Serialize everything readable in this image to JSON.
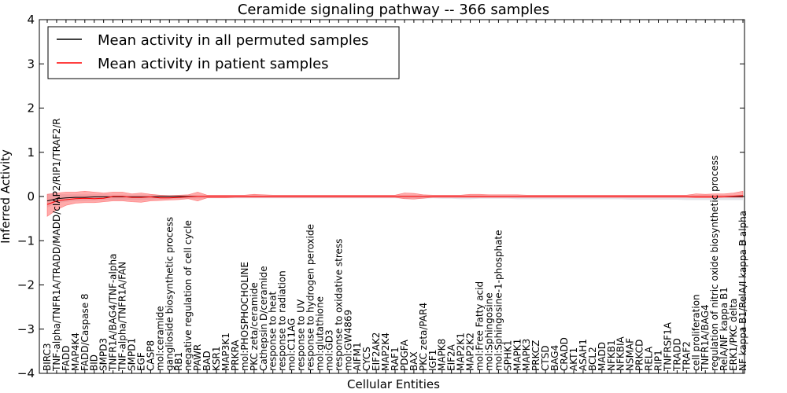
{
  "chart_data": {
    "type": "line",
    "title": "Ceramide signaling pathway -- 366 samples",
    "xlabel": "Cellular Entities",
    "ylabel": "Inferred Activity",
    "ylim": [
      -4,
      4
    ],
    "yticks": [
      -4,
      -3,
      -2,
      -1,
      0,
      1,
      2,
      3,
      4
    ],
    "grid": false,
    "legend_position": "top-left",
    "colors": {
      "permuted": "#000000",
      "patient": "#ff0000",
      "patient_band": "#ff6666",
      "permuted_band": "#b0b0c0"
    },
    "categories": [
      "BIRC3",
      "TNF-alpha/TNFR1A/TRADD/MADD/cIAP2/RIP1/TRAF2/R",
      "FADD",
      "MAP4K4",
      "FADD/Caspase 8",
      "BID",
      "SMPD3",
      "TNFR1A/BAG4/TNF-alpha",
      "TNF-alpha/TNFR1A/FAN",
      "SMPD1",
      "EGF",
      "CASP8",
      "mol:ceramide",
      "ganglioside biosynthetic process",
      "RB1",
      "negative regulation of cell cycle",
      "PAWR",
      "BAD",
      "KSR1",
      "MAP3K1",
      "PRKRA",
      "mol:PHOSPHOCHOLINE",
      "PKC zeta/ceramide",
      "Cathepsin D/ceramide",
      "response to heat",
      "response to radiation",
      "mol:C11AG",
      "response to UV",
      "response to hydrogen peroxide",
      "mol:glutathione",
      "mol:GD3",
      "response to oxidative stress",
      "mol:GW4869",
      "AIFM1",
      "CYCS",
      "EIF2AK2",
      "MAP2K4",
      "RAF1",
      "PDGFA",
      "BAX",
      "PKC zeta/PAR4",
      "IGF1",
      "MAPK8",
      "EIF2A",
      "MAP2K1",
      "MAP2K2",
      "mol:Free Fatty acid",
      "mol:Sphingosine",
      "mol:Sphingosine-1-phosphate",
      "SPHK1",
      "MAPK1",
      "MAPK3",
      "PRKCZ",
      "CTSD",
      "BAG4",
      "CRADD",
      "AKT1",
      "ASAH1",
      "BCL2",
      "MADD",
      "NFKB1",
      "NFKBIA",
      "NSMAF",
      "PRKCD",
      "RELA",
      "RIP1",
      "TNFRSF1A",
      "TRADD",
      "TRAF2",
      "cell proliferation",
      "TNFR1A/BAG4",
      "regulation of nitric oxide biosynthetic process",
      "RelA/NF kappa B1",
      "ERK1/PKC delta",
      "NF kappa B1/RelA/I kappa B alpha"
    ],
    "series": [
      {
        "name": "Mean activity in all permuted samples",
        "values": [
          -0.1,
          -0.05,
          -0.03,
          -0.02,
          -0.02,
          -0.01,
          -0.01,
          -0.01,
          -0.01,
          -0.01,
          -0.01,
          -0.01,
          0,
          0,
          0,
          0,
          0,
          0,
          0,
          0,
          0,
          0,
          0,
          0,
          0,
          0,
          0,
          0,
          0,
          0,
          0,
          0,
          0,
          0,
          0,
          0,
          0,
          0,
          0,
          0,
          0,
          0,
          0,
          0,
          0,
          0,
          0,
          0,
          0,
          0,
          0,
          0,
          0,
          0,
          0,
          0,
          0,
          0,
          0,
          0,
          0,
          0,
          0,
          0,
          0,
          0,
          0,
          0,
          0,
          0,
          0,
          0,
          0,
          0,
          0
        ],
        "lower": [
          -0.25,
          -0.15,
          -0.12,
          -0.1,
          -0.1,
          -0.09,
          -0.08,
          -0.08,
          -0.08,
          -0.08,
          -0.08,
          -0.07,
          -0.06,
          -0.06,
          -0.05,
          -0.05,
          -0.05,
          -0.04,
          -0.04,
          -0.04,
          -0.04,
          -0.04,
          -0.04,
          -0.04,
          -0.04,
          -0.04,
          -0.04,
          -0.04,
          -0.04,
          -0.04,
          -0.04,
          -0.04,
          -0.04,
          -0.04,
          -0.04,
          -0.04,
          -0.04,
          -0.04,
          -0.05,
          -0.05,
          -0.05,
          -0.04,
          -0.05,
          -0.05,
          -0.06,
          -0.06,
          -0.05,
          -0.05,
          -0.05,
          -0.05,
          -0.06,
          -0.06,
          -0.06,
          -0.06,
          -0.06,
          -0.06,
          -0.06,
          -0.06,
          -0.06,
          -0.06,
          -0.06,
          -0.06,
          -0.07,
          -0.07,
          -0.07,
          -0.07,
          -0.07,
          -0.07,
          -0.08,
          -0.08,
          -0.08,
          -0.08,
          -0.08,
          -0.08,
          -0.08
        ],
        "upper": [
          0.06,
          0.06,
          0.05,
          0.05,
          0.05,
          0.05,
          0.05,
          0.04,
          0.04,
          0.04,
          0.04,
          0.04,
          0.03,
          0.03,
          0.03,
          0.03,
          0.03,
          0.03,
          0.03,
          0.03,
          0.03,
          0.03,
          0.03,
          0.03,
          0.03,
          0.03,
          0.03,
          0.03,
          0.03,
          0.03,
          0.03,
          0.03,
          0.03,
          0.03,
          0.03,
          0.03,
          0.03,
          0.03,
          0.03,
          0.03,
          0.03,
          0.03,
          0.03,
          0.03,
          0.03,
          0.03,
          0.03,
          0.03,
          0.03,
          0.03,
          0.03,
          0.03,
          0.03,
          0.03,
          0.03,
          0.03,
          0.03,
          0.03,
          0.03,
          0.03,
          0.03,
          0.03,
          0.03,
          0.03,
          0.03,
          0.03,
          0.03,
          0.03,
          0.03,
          0.03,
          0.03,
          0.03,
          0.03,
          0.03,
          0.03
        ]
      },
      {
        "name": "Mean activity in patient samples",
        "values": [
          -0.18,
          -0.1,
          -0.07,
          -0.05,
          -0.04,
          -0.05,
          -0.04,
          0,
          0,
          -0.02,
          -0.02,
          -0.01,
          -0.03,
          -0.03,
          -0.02,
          -0.01,
          0,
          0,
          0,
          0,
          0,
          0,
          0,
          0,
          0,
          0,
          0,
          0,
          0,
          0,
          0,
          0,
          0,
          0,
          0,
          0,
          0,
          0,
          0,
          0,
          0,
          0,
          0,
          0,
          0,
          0,
          0,
          0,
          0,
          0,
          0,
          0,
          0,
          0,
          0,
          0,
          0,
          0,
          0,
          0,
          0,
          0,
          0,
          0,
          0,
          0,
          0,
          0,
          0,
          0,
          0,
          0,
          0,
          0.01,
          0.02
        ],
        "lower": [
          -0.45,
          -0.3,
          -0.2,
          -0.15,
          -0.14,
          -0.14,
          -0.12,
          -0.1,
          -0.1,
          -0.12,
          -0.13,
          -0.1,
          -0.09,
          -0.08,
          -0.07,
          -0.05,
          -0.1,
          -0.03,
          -0.03,
          -0.03,
          -0.02,
          -0.02,
          -0.02,
          -0.02,
          -0.02,
          -0.02,
          -0.02,
          -0.02,
          -0.02,
          -0.02,
          -0.02,
          -0.02,
          -0.02,
          -0.02,
          -0.02,
          -0.02,
          -0.02,
          -0.02,
          -0.05,
          -0.06,
          -0.04,
          -0.02,
          -0.02,
          -0.02,
          -0.02,
          -0.02,
          -0.02,
          -0.02,
          -0.02,
          -0.02,
          -0.02,
          -0.02,
          -0.02,
          -0.02,
          -0.02,
          -0.02,
          -0.02,
          -0.02,
          -0.02,
          -0.02,
          -0.02,
          -0.02,
          -0.02,
          -0.02,
          -0.02,
          -0.02,
          -0.02,
          -0.02,
          -0.02,
          -0.03,
          -0.03,
          -0.03,
          -0.02,
          -0.02,
          -0.02
        ],
        "upper": [
          0.05,
          0.08,
          0.1,
          0.1,
          0.12,
          0.1,
          0.08,
          0.1,
          0.1,
          0.06,
          0.08,
          0.05,
          0.03,
          0.02,
          0.03,
          0.04,
          0.1,
          0.03,
          0.03,
          0.03,
          0.03,
          0.03,
          0.05,
          0.04,
          0.03,
          0.03,
          0.03,
          0.03,
          0.03,
          0.03,
          0.03,
          0.03,
          0.03,
          0.03,
          0.03,
          0.03,
          0.03,
          0.03,
          0.08,
          0.07,
          0.04,
          0.03,
          0.03,
          0.03,
          0.03,
          0.05,
          0.05,
          0.04,
          0.04,
          0.04,
          0.04,
          0.03,
          0.03,
          0.03,
          0.03,
          0.03,
          0.03,
          0.03,
          0.03,
          0.03,
          0.03,
          0.03,
          0.03,
          0.03,
          0.03,
          0.03,
          0.03,
          0.03,
          0.03,
          0.06,
          0.05,
          0.06,
          0.06,
          0.08,
          0.12
        ]
      }
    ]
  }
}
